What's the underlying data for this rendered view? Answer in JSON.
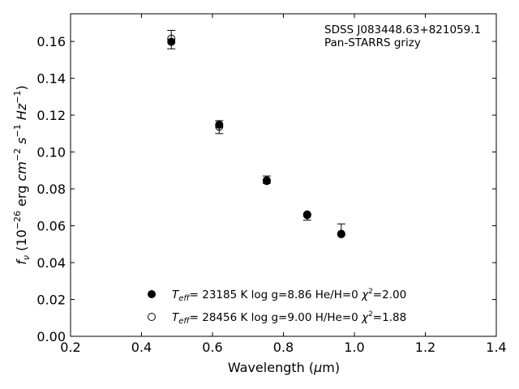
{
  "chart_data": {
    "type": "scatter",
    "xlabel_main": "Wavelength (",
    "xlabel_mu": "μ",
    "xlabel_unit": "m)",
    "ylabel": {
      "f": "f",
      "nu": "ν",
      "open": " (10",
      "exp1": "−26",
      "erg": " erg ",
      "cm": "cm",
      "exp2": "−2",
      "s": " s",
      "exp3": "−1",
      "hz": " Hz",
      "exp4": "−1",
      "close": ")"
    },
    "annotation": [
      "SDSS J083448.63+821059.1",
      "Pan-STARRS grizy"
    ],
    "xlim": [
      0.2,
      1.4
    ],
    "ylim": [
      0.0,
      0.175
    ],
    "xticks": [
      0.2,
      0.4,
      0.6,
      0.8,
      1.0,
      1.2,
      1.4
    ],
    "xtick_labels": [
      "0.2",
      "0.4",
      "0.6",
      "0.8",
      "1.0",
      "1.2",
      "1.4"
    ],
    "yticks": [
      0.0,
      0.02,
      0.04,
      0.06,
      0.08,
      0.1,
      0.12,
      0.14,
      0.16
    ],
    "ytick_labels": [
      "0.00",
      "0.02",
      "0.04",
      "0.06",
      "0.08",
      "0.10",
      "0.12",
      "0.14",
      "0.16"
    ],
    "grid": false,
    "legend_position": "lower-center",
    "observed": {
      "x": [
        0.484,
        0.619,
        0.753,
        0.867,
        0.963
      ],
      "y": [
        0.1605,
        0.1135,
        0.085,
        0.0655,
        0.0565
      ],
      "yerr_low": [
        0.0045,
        0.0035,
        0.002,
        0.0025,
        0.0015
      ],
      "yerr_high": [
        0.0055,
        0.0035,
        0.002,
        0.001,
        0.0045
      ]
    },
    "series": [
      {
        "marker": "filled-circle",
        "teff_symbol": "T",
        "teff_sub": "eff",
        "text_mid": "= 23185 K  log g=8.86  He/H=0  ",
        "chi_symbol": "χ",
        "chi_sup": "2",
        "chi_val": "=2.00",
        "x": [
          0.484,
          0.619,
          0.753,
          0.867,
          0.963
        ],
        "y": [
          0.1598,
          0.1148,
          0.0843,
          0.0661,
          0.0554
        ]
      },
      {
        "marker": "open-circle",
        "teff_symbol": "T",
        "teff_sub": "eff",
        "text_mid": "= 28456 K  log g=9.00  H/He=0  ",
        "chi_symbol": "χ",
        "chi_sup": "2",
        "chi_val": "=1.88",
        "x": [
          0.484,
          0.619,
          0.753,
          0.867,
          0.963
        ],
        "y": [
          0.1615,
          0.1138,
          0.0846,
          0.0658,
          0.0556
        ]
      }
    ],
    "colors": {
      "marker": "#000000",
      "background": "#ffffff"
    }
  }
}
